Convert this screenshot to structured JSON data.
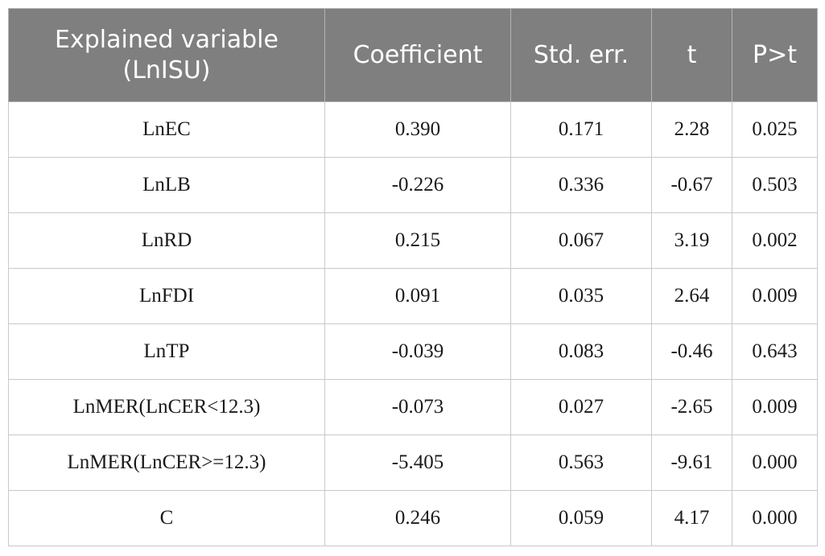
{
  "table": {
    "headers": [
      "Explained variable\n(LnISU)",
      "Coefficient",
      "Std. err.",
      "t",
      "P>t"
    ],
    "rows": [
      [
        "LnEC",
        "0.390",
        "0.171",
        "2.28",
        "0.025"
      ],
      [
        "LnLB",
        "-0.226",
        "0.336",
        "-0.67",
        "0.503"
      ],
      [
        "LnRD",
        "0.215",
        "0.067",
        "3.19",
        "0.002"
      ],
      [
        "LnFDI",
        "0.091",
        "0.035",
        "2.64",
        "0.009"
      ],
      [
        "LnTP",
        "-0.039",
        "0.083",
        "-0.46",
        "0.643"
      ],
      [
        "LnMER(LnCER<12.3)",
        "-0.073",
        "0.027",
        "-2.65",
        "0.009"
      ],
      [
        "LnMER(LnCER>=12.3)",
        "-5.405",
        "0.563",
        "-9.61",
        "0.000"
      ],
      [
        "C",
        "0.246",
        "0.059",
        "4.17",
        "0.000"
      ]
    ]
  },
  "colors": {
    "header_background": "#7f7f7f",
    "header_text": "#ffffff",
    "grid_line": "#c9c9c9",
    "body_text": "#1a1a1a"
  }
}
